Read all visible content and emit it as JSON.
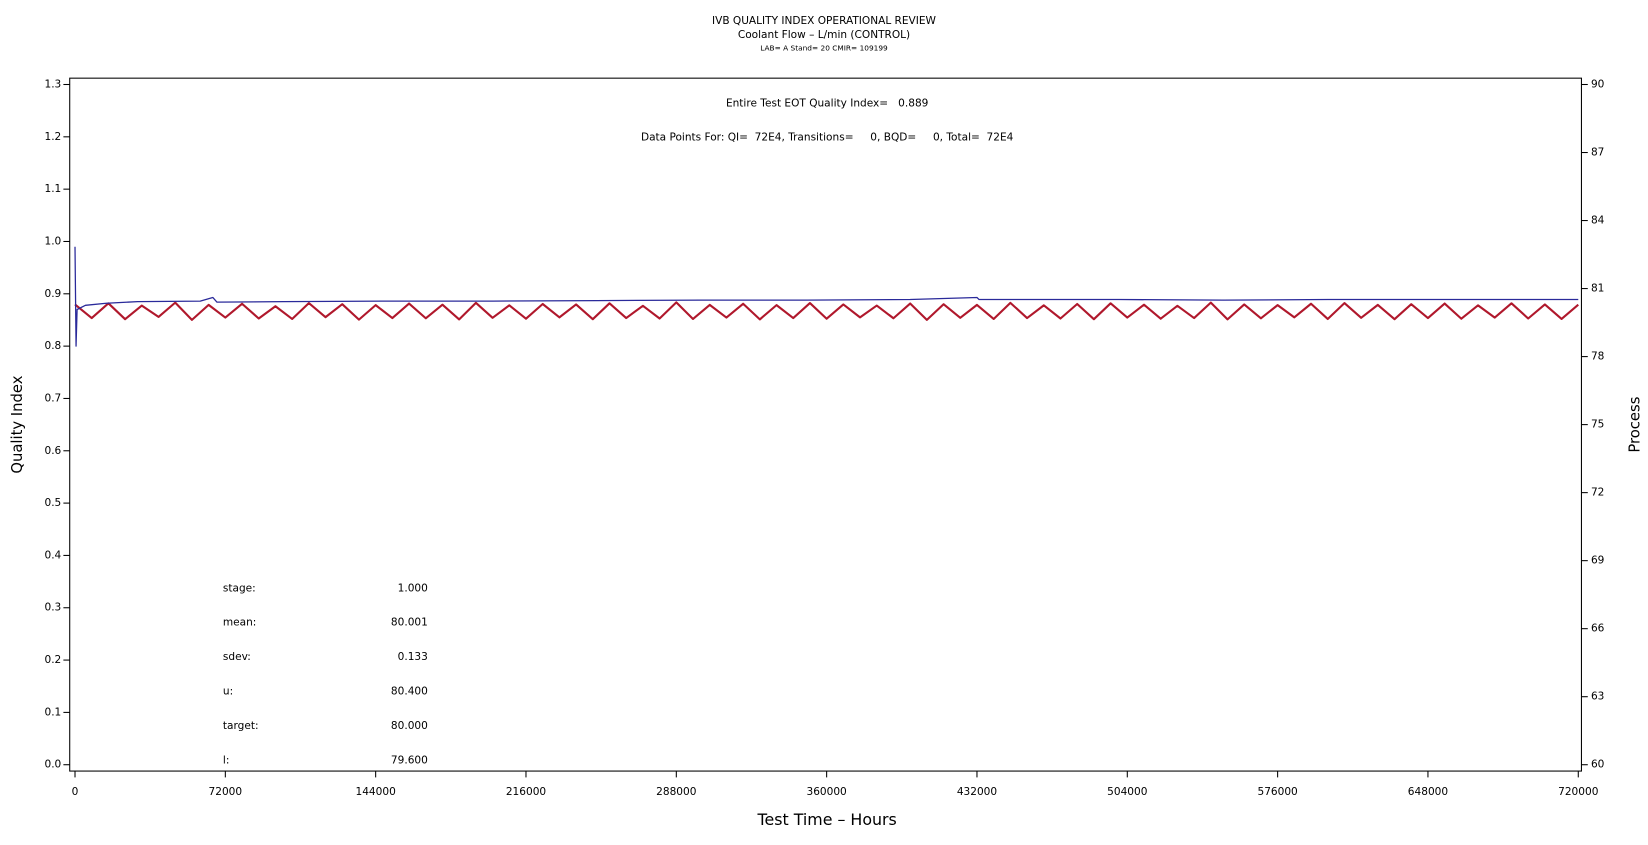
{
  "chart_data": {
    "type": "line",
    "title": "IVB QUALITY INDEX OPERATIONAL REVIEW",
    "subtitle": "Coolant Flow – L/min (CONTROL)",
    "subtitle2": "LAB= A Stand= 20 CMIR= 109199",
    "annotations": [
      "Entire Test EOT Quality Index=   0.889",
      "Data Points For: QI=  72E4, Transitions=     0, BQD=     0, Total=  72E4"
    ],
    "stats": [
      {
        "label": "stage:",
        "value": "1.000"
      },
      {
        "label": "mean:",
        "value": "80.001"
      },
      {
        "label": "sdev:",
        "value": "0.133"
      },
      {
        "label": "u:",
        "value": "80.400"
      },
      {
        "label": "target:",
        "value": "80.000"
      },
      {
        "label": "l:",
        "value": "79.600"
      }
    ],
    "x_label": "Test Time – Hours",
    "y_label": "Quality Index",
    "y2_label": "Process",
    "xlim": [
      0,
      720000
    ],
    "xticks": [
      0,
      72000,
      144000,
      216000,
      288000,
      360000,
      432000,
      504000,
      576000,
      648000,
      720000
    ],
    "ylim": [
      0,
      1.3
    ],
    "yticks": [
      {
        "value": 0,
        "label": "0.0"
      },
      0.1,
      0.2,
      0.3,
      0.4,
      0.5,
      0.6,
      0.7,
      0.8,
      0.9,
      {
        "value": 1,
        "label": "1.0"
      },
      1.1,
      1.2,
      1.3
    ],
    "y2lim": [
      60,
      90
    ],
    "y2ticks": [
      60,
      63,
      66,
      69,
      72,
      75,
      78,
      81,
      84,
      87,
      90
    ],
    "series": [
      {
        "color": "#b0182c",
        "axis": "y2",
        "x": [
          0,
          8000,
          16000,
          24000,
          32000,
          40000,
          48000,
          56000,
          64000,
          72000,
          80000,
          88000,
          96000,
          104000,
          112000,
          120000,
          128000,
          136000,
          144000,
          152000,
          160000,
          168000,
          176000,
          184000,
          192000,
          200000,
          208000,
          216000,
          224000,
          232000,
          240000,
          248000,
          256000,
          264000,
          272000,
          280000,
          288000,
          296000,
          304000,
          312000,
          320000,
          328000,
          336000,
          344000,
          352000,
          360000,
          368000,
          376000,
          384000,
          392000,
          400000,
          408000,
          416000,
          424000,
          432000,
          440000,
          448000,
          456000,
          464000,
          472000,
          480000,
          488000,
          496000,
          504000,
          512000,
          520000,
          528000,
          536000,
          544000,
          552000,
          560000,
          568000,
          576000,
          584000,
          592000,
          600000,
          608000,
          616000,
          624000,
          632000,
          640000,
          648000,
          656000,
          664000,
          672000,
          680000,
          688000,
          696000,
          704000,
          712000,
          720000
        ],
        "values": [
          80.3,
          79.7,
          80.35,
          79.65,
          80.25,
          79.75,
          80.38,
          79.62,
          80.28,
          79.72,
          80.33,
          79.68,
          80.22,
          79.66,
          80.36,
          79.74,
          80.31,
          79.63,
          80.27,
          79.7,
          80.34,
          79.69,
          80.29,
          79.64,
          80.37,
          79.71,
          80.26,
          79.67,
          80.32,
          79.73,
          80.3,
          79.65,
          80.35,
          79.7,
          80.24,
          79.68,
          80.39,
          79.66,
          80.28,
          79.72,
          80.33,
          79.64,
          80.27,
          79.7,
          80.36,
          79.67,
          80.3,
          79.73,
          80.25,
          79.69,
          80.34,
          79.62,
          80.31,
          79.71,
          80.28,
          79.66,
          80.37,
          79.7,
          80.26,
          79.68,
          80.32,
          79.65,
          80.35,
          79.72,
          80.29,
          79.67,
          80.24,
          79.7,
          80.38,
          79.64,
          80.3,
          79.69,
          80.27,
          79.73,
          80.33,
          79.66,
          80.36,
          79.71,
          80.28,
          79.65,
          80.31,
          79.7,
          80.34,
          79.67,
          80.26,
          79.72,
          80.35,
          79.68,
          80.3,
          79.66,
          80.29
        ]
      },
      {
        "color": "#2a2a9a",
        "x": [
          0,
          500,
          1000,
          5000,
          15000,
          30000,
          60000,
          66000,
          68000,
          100000,
          150000,
          200000,
          250000,
          300000,
          350000,
          400000,
          432000,
          433000,
          500000,
          550000,
          600000,
          660000,
          720000
        ],
        "values": [
          0.99,
          0.8,
          0.87,
          0.878,
          0.882,
          0.885,
          0.886,
          0.893,
          0.884,
          0.885,
          0.886,
          0.886,
          0.887,
          0.888,
          0.888,
          0.889,
          0.893,
          0.889,
          0.889,
          0.888,
          0.889,
          0.889,
          0.889
        ]
      }
    ]
  }
}
